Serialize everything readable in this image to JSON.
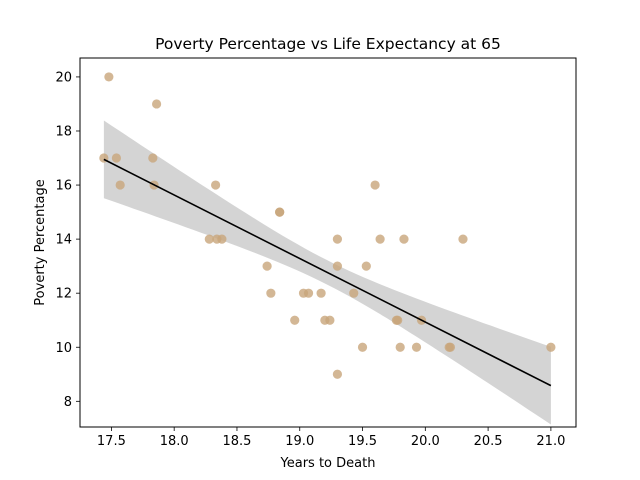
{
  "chart_data": {
    "type": "scatter",
    "title": "Poverty Percentage vs Life Expectancy at 65",
    "xlabel": "Years to Death",
    "ylabel": "Poverty Percentage",
    "xlim": [
      17.25,
      21.2
    ],
    "ylim": [
      7.05,
      20.7
    ],
    "x_ticks": [
      "17.5",
      "18.0",
      "18.5",
      "19.0",
      "19.5",
      "20.0",
      "20.5",
      "21.0"
    ],
    "y_ticks": [
      "8",
      "10",
      "12",
      "14",
      "16",
      "18",
      "20"
    ],
    "grid": false,
    "legend": "none",
    "point_color": "#c8a57b",
    "line_color": "#000000",
    "band_color": "#d4d4d4",
    "points": [
      {
        "x": 17.44,
        "y": 17
      },
      {
        "x": 17.48,
        "y": 20
      },
      {
        "x": 17.54,
        "y": 17
      },
      {
        "x": 17.57,
        "y": 16
      },
      {
        "x": 17.83,
        "y": 17
      },
      {
        "x": 17.84,
        "y": 16
      },
      {
        "x": 17.86,
        "y": 19
      },
      {
        "x": 18.28,
        "y": 14
      },
      {
        "x": 18.33,
        "y": 16
      },
      {
        "x": 18.34,
        "y": 14
      },
      {
        "x": 18.38,
        "y": 14
      },
      {
        "x": 18.74,
        "y": 13
      },
      {
        "x": 18.77,
        "y": 12
      },
      {
        "x": 18.84,
        "y": 15
      },
      {
        "x": 18.84,
        "y": 15
      },
      {
        "x": 18.96,
        "y": 11
      },
      {
        "x": 19.03,
        "y": 12
      },
      {
        "x": 19.07,
        "y": 12
      },
      {
        "x": 19.17,
        "y": 12
      },
      {
        "x": 19.2,
        "y": 11
      },
      {
        "x": 19.24,
        "y": 11
      },
      {
        "x": 19.3,
        "y": 9
      },
      {
        "x": 19.3,
        "y": 14
      },
      {
        "x": 19.3,
        "y": 13
      },
      {
        "x": 19.43,
        "y": 12
      },
      {
        "x": 19.5,
        "y": 10
      },
      {
        "x": 19.53,
        "y": 13
      },
      {
        "x": 19.6,
        "y": 16
      },
      {
        "x": 19.64,
        "y": 14
      },
      {
        "x": 19.77,
        "y": 11
      },
      {
        "x": 19.78,
        "y": 11
      },
      {
        "x": 19.8,
        "y": 10
      },
      {
        "x": 19.83,
        "y": 14
      },
      {
        "x": 19.93,
        "y": 10
      },
      {
        "x": 19.97,
        "y": 11
      },
      {
        "x": 20.19,
        "y": 10
      },
      {
        "x": 20.2,
        "y": 10
      },
      {
        "x": 20.3,
        "y": 14
      },
      {
        "x": 21.0,
        "y": 10
      }
    ],
    "regression": {
      "x": [
        17.44,
        21.0
      ],
      "y": [
        16.95,
        8.58
      ],
      "ci_upper": [
        18.05,
        10.25
      ],
      "ci_lower": [
        15.75,
        6.9
      ]
    }
  }
}
